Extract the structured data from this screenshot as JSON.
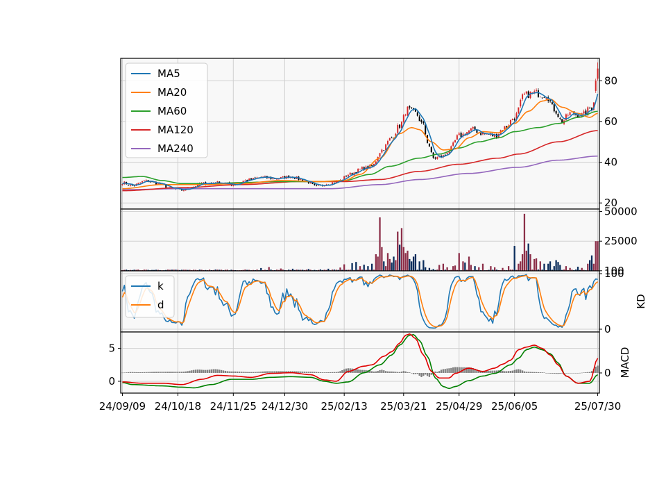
{
  "chart_data": {
    "type": "candlestick",
    "x_tick_labels": [
      "24/09/09",
      "24/10/18",
      "24/11/25",
      "24/12/30",
      "25/02/13",
      "25/03/21",
      "25/04/29",
      "25/06/05",
      "25/07/30"
    ],
    "x_tick_index": [
      0,
      28,
      56,
      82,
      112,
      142,
      170,
      198,
      240
    ],
    "n_points": 241,
    "grid": true,
    "colors": {
      "up": "#d62728",
      "down": "#000000",
      "ma5": "#1f77b4",
      "ma20": "#ff7f0e",
      "ma60": "#2ca02c",
      "ma120": "#d62728",
      "ma240": "#9467bd",
      "k": "#1f77b4",
      "d": "#ff7f0e",
      "dif": "#e00000",
      "dea": "#008000",
      "hist": "#808080",
      "vol_up": "#8c2f49",
      "vol_down": "#0b2d5c"
    },
    "price_panel": {
      "ylim": [
        17,
        91
      ],
      "yticks": [
        20,
        40,
        60,
        80
      ],
      "legend_position": "upper-left",
      "legend": [
        "MA5",
        "MA20",
        "MA60",
        "MA120",
        "MA240"
      ],
      "close_knots": [
        [
          0,
          30
        ],
        [
          5,
          28.5
        ],
        [
          12,
          30.8
        ],
        [
          18,
          29.5
        ],
        [
          25,
          27
        ],
        [
          30,
          26.2
        ],
        [
          34,
          27.5
        ],
        [
          40,
          29.5
        ],
        [
          48,
          30
        ],
        [
          56,
          29
        ],
        [
          62,
          31
        ],
        [
          70,
          32.5
        ],
        [
          78,
          32
        ],
        [
          85,
          33
        ],
        [
          92,
          31
        ],
        [
          98,
          28
        ],
        [
          104,
          29.5
        ],
        [
          110,
          31
        ],
        [
          114,
          34
        ],
        [
          122,
          37
        ],
        [
          126,
          38
        ],
        [
          131,
          46
        ],
        [
          136,
          52
        ],
        [
          140,
          58
        ],
        [
          144,
          66
        ],
        [
          148,
          64
        ],
        [
          152,
          58
        ],
        [
          154,
          50
        ],
        [
          157,
          42
        ],
        [
          162,
          43
        ],
        [
          165,
          46
        ],
        [
          170,
          53
        ],
        [
          177,
          56
        ],
        [
          182,
          54
        ],
        [
          188,
          53
        ],
        [
          193,
          57
        ],
        [
          198,
          62
        ],
        [
          203,
          73
        ],
        [
          208,
          74
        ],
        [
          214,
          73
        ],
        [
          218,
          66
        ],
        [
          222,
          60
        ],
        [
          226,
          64
        ],
        [
          232,
          63
        ],
        [
          237,
          67
        ],
        [
          240,
          80
        ]
      ],
      "ma20_knots": [
        [
          0,
          27
        ],
        [
          20,
          29
        ],
        [
          40,
          29
        ],
        [
          60,
          29.5
        ],
        [
          80,
          31
        ],
        [
          100,
          30.5
        ],
        [
          112,
          31
        ],
        [
          120,
          34
        ],
        [
          130,
          42
        ],
        [
          140,
          54
        ],
        [
          146,
          57
        ],
        [
          150,
          56
        ],
        [
          156,
          50
        ],
        [
          162,
          46
        ],
        [
          168,
          46.5
        ],
        [
          175,
          52
        ],
        [
          182,
          55
        ],
        [
          190,
          54.5
        ],
        [
          198,
          59
        ],
        [
          205,
          65
        ],
        [
          212,
          70
        ],
        [
          216,
          71
        ],
        [
          222,
          67
        ],
        [
          230,
          64
        ],
        [
          236,
          62
        ],
        [
          240,
          64
        ]
      ],
      "ma60_knots": [
        [
          0,
          32.5
        ],
        [
          10,
          33
        ],
        [
          20,
          31
        ],
        [
          30,
          29.5
        ],
        [
          45,
          29.5
        ],
        [
          60,
          30
        ],
        [
          80,
          30.5
        ],
        [
          100,
          30.5
        ],
        [
          112,
          31
        ],
        [
          125,
          34
        ],
        [
          135,
          38
        ],
        [
          150,
          42
        ],
        [
          160,
          44
        ],
        [
          170,
          47
        ],
        [
          180,
          50
        ],
        [
          190,
          52
        ],
        [
          198,
          55
        ],
        [
          210,
          57
        ],
        [
          220,
          59
        ],
        [
          230,
          62
        ],
        [
          240,
          65
        ]
      ],
      "ma120_knots": [
        [
          0,
          26
        ],
        [
          30,
          27.5
        ],
        [
          60,
          29
        ],
        [
          90,
          30.5
        ],
        [
          112,
          30.5
        ],
        [
          130,
          31.5
        ],
        [
          150,
          35.5
        ],
        [
          170,
          39
        ],
        [
          190,
          42
        ],
        [
          200,
          44
        ],
        [
          220,
          50
        ],
        [
          240,
          55.5
        ]
      ],
      "ma240_knots": [
        [
          0,
          26.5
        ],
        [
          30,
          27
        ],
        [
          60,
          27
        ],
        [
          105,
          27
        ],
        [
          130,
          29
        ],
        [
          150,
          31.5
        ],
        [
          175,
          34.5
        ],
        [
          200,
          37.5
        ],
        [
          220,
          41
        ],
        [
          240,
          43
        ]
      ]
    },
    "volume_panel": {
      "ylim": [
        0,
        52000
      ],
      "yticks": [
        100,
        25000,
        50000
      ],
      "ytick_labels": [
        "100",
        "25000",
        "50000"
      ],
      "base": 800,
      "spikes": [
        [
          35,
          600
        ],
        [
          47,
          1100
        ],
        [
          59,
          500
        ],
        [
          70,
          2400
        ],
        [
          74,
          3200
        ],
        [
          80,
          2000
        ],
        [
          86,
          1800
        ],
        [
          94,
          1600
        ],
        [
          100,
          1200
        ],
        [
          104,
          1800
        ],
        [
          110,
          2800
        ],
        [
          112,
          5500
        ],
        [
          116,
          6500
        ],
        [
          118,
          7500
        ],
        [
          120,
          4000
        ],
        [
          122,
          5200
        ],
        [
          124,
          4000
        ],
        [
          126,
          6000
        ],
        [
          128,
          14000
        ],
        [
          129,
          12000
        ],
        [
          130,
          45000
        ],
        [
          131,
          20000
        ],
        [
          132,
          8000
        ],
        [
          133,
          4000
        ],
        [
          134,
          15000
        ],
        [
          135,
          10000
        ],
        [
          136,
          7000
        ],
        [
          137,
          12000
        ],
        [
          138,
          9000
        ],
        [
          139,
          33000
        ],
        [
          140,
          22000
        ],
        [
          141,
          36000
        ],
        [
          142,
          20000
        ],
        [
          143,
          15000
        ],
        [
          144,
          17000
        ],
        [
          145,
          10000
        ],
        [
          146,
          8000
        ],
        [
          147,
          12000
        ],
        [
          148,
          14000
        ],
        [
          150,
          8000
        ],
        [
          152,
          9000
        ],
        [
          153,
          3000
        ],
        [
          155,
          2500
        ],
        [
          157,
          1500
        ],
        [
          160,
          5000
        ],
        [
          162,
          6000
        ],
        [
          164,
          3000
        ],
        [
          167,
          4000
        ],
        [
          168,
          4500
        ],
        [
          170,
          15000
        ],
        [
          172,
          8000
        ],
        [
          173,
          7000
        ],
        [
          175,
          12000
        ],
        [
          176,
          5000
        ],
        [
          178,
          4000
        ],
        [
          180,
          3000
        ],
        [
          182,
          6000
        ],
        [
          186,
          4000
        ],
        [
          188,
          3000
        ],
        [
          192,
          2500
        ],
        [
          195,
          4000
        ],
        [
          198,
          21000
        ],
        [
          200,
          6000
        ],
        [
          201,
          8000
        ],
        [
          202,
          14000
        ],
        [
          203,
          48000
        ],
        [
          204,
          17000
        ],
        [
          205,
          23000
        ],
        [
          206,
          14000
        ],
        [
          208,
          10000
        ],
        [
          209,
          10500
        ],
        [
          211,
          8000
        ],
        [
          213,
          6000
        ],
        [
          215,
          6000
        ],
        [
          216,
          8000
        ],
        [
          218,
          4000
        ],
        [
          219,
          9000
        ],
        [
          220,
          7500
        ],
        [
          221,
          5000
        ],
        [
          224,
          4000
        ],
        [
          226,
          2500
        ],
        [
          230,
          3500
        ],
        [
          232,
          2500
        ],
        [
          235,
          6000
        ],
        [
          236,
          9000
        ],
        [
          237,
          13000
        ],
        [
          238,
          6000
        ],
        [
          239,
          25000
        ],
        [
          240,
          25000
        ]
      ]
    },
    "kd_panel": {
      "ylim": [
        -5,
        105
      ],
      "yticks": [
        0,
        100
      ],
      "ylabel": "KD",
      "legend_position": "upper-left",
      "legend": [
        "k",
        "d"
      ]
    },
    "macd_panel": {
      "ylim": [
        -1.8,
        7.5
      ],
      "left_yticks": [
        0,
        5
      ],
      "right_yticks": [
        0
      ],
      "ylabel": "MACD",
      "dif_knots": [
        [
          0,
          -0.1
        ],
        [
          10,
          -0.3
        ],
        [
          20,
          -0.3
        ],
        [
          30,
          -0.5
        ],
        [
          40,
          0.3
        ],
        [
          48,
          0.9
        ],
        [
          56,
          0.8
        ],
        [
          65,
          0.6
        ],
        [
          75,
          1.2
        ],
        [
          85,
          1.3
        ],
        [
          95,
          1.0
        ],
        [
          102,
          0.2
        ],
        [
          108,
          0.0
        ],
        [
          114,
          1.5
        ],
        [
          122,
          2.3
        ],
        [
          126,
          2.5
        ],
        [
          132,
          3.8
        ],
        [
          136,
          4.5
        ],
        [
          140,
          5.8
        ],
        [
          143,
          7.0
        ],
        [
          145,
          7.2
        ],
        [
          148,
          6.5
        ],
        [
          152,
          4.0
        ],
        [
          156,
          1.5
        ],
        [
          160,
          0.5
        ],
        [
          165,
          0.5
        ],
        [
          168,
          1.2
        ],
        [
          175,
          2.0
        ],
        [
          182,
          1.5
        ],
        [
          188,
          2.0
        ],
        [
          192,
          2.6
        ],
        [
          196,
          3.2
        ],
        [
          200,
          4.8
        ],
        [
          204,
          5.2
        ],
        [
          208,
          5.5
        ],
        [
          212,
          5.0
        ],
        [
          216,
          4.0
        ],
        [
          220,
          2.5
        ],
        [
          224,
          0.8
        ],
        [
          230,
          -0.3
        ],
        [
          236,
          0.0
        ],
        [
          240,
          3.5
        ]
      ],
      "dea_knots": [
        [
          0,
          -0.2
        ],
        [
          5,
          -0.5
        ],
        [
          20,
          -0.7
        ],
        [
          30,
          -0.9
        ],
        [
          36,
          -1.0
        ],
        [
          45,
          -0.5
        ],
        [
          55,
          0.3
        ],
        [
          65,
          0.3
        ],
        [
          75,
          0.6
        ],
        [
          85,
          0.7
        ],
        [
          95,
          0.6
        ],
        [
          102,
          0.0
        ],
        [
          108,
          -0.3
        ],
        [
          114,
          -0.1
        ],
        [
          122,
          1.3
        ],
        [
          130,
          2.5
        ],
        [
          136,
          4.0
        ],
        [
          140,
          5.5
        ],
        [
          145,
          7.0
        ],
        [
          147,
          7.1
        ],
        [
          150,
          6.2
        ],
        [
          154,
          3.8
        ],
        [
          158,
          0.5
        ],
        [
          162,
          -0.8
        ],
        [
          165,
          -1.1
        ],
        [
          168,
          -0.8
        ],
        [
          175,
          0.1
        ],
        [
          182,
          0.8
        ],
        [
          188,
          1.2
        ],
        [
          196,
          2.5
        ],
        [
          200,
          3.5
        ],
        [
          204,
          4.8
        ],
        [
          208,
          5.2
        ],
        [
          212,
          4.8
        ],
        [
          216,
          4.2
        ],
        [
          220,
          2.8
        ],
        [
          224,
          0.8
        ],
        [
          230,
          -0.3
        ],
        [
          236,
          -0.3
        ],
        [
          240,
          1.0
        ]
      ]
    }
  }
}
